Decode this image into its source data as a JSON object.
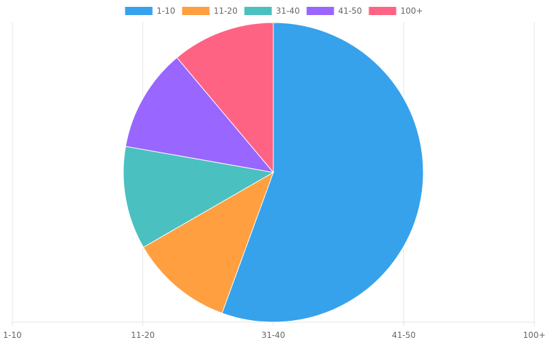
{
  "chart_data": {
    "type": "pie",
    "labels": [
      "1-10",
      "11-20",
      "31-40",
      "41-50",
      "100+"
    ],
    "values": [
      5,
      1,
      1,
      1,
      1
    ],
    "colors": [
      "#36a2eb",
      "#ff9f40",
      "#4bc0c0",
      "#9966ff",
      "#ff6384"
    ],
    "legend_position": "top",
    "x_tick_labels": [
      "1-10",
      "11-20",
      "31-40",
      "41-50",
      "100+"
    ],
    "grid": true
  }
}
